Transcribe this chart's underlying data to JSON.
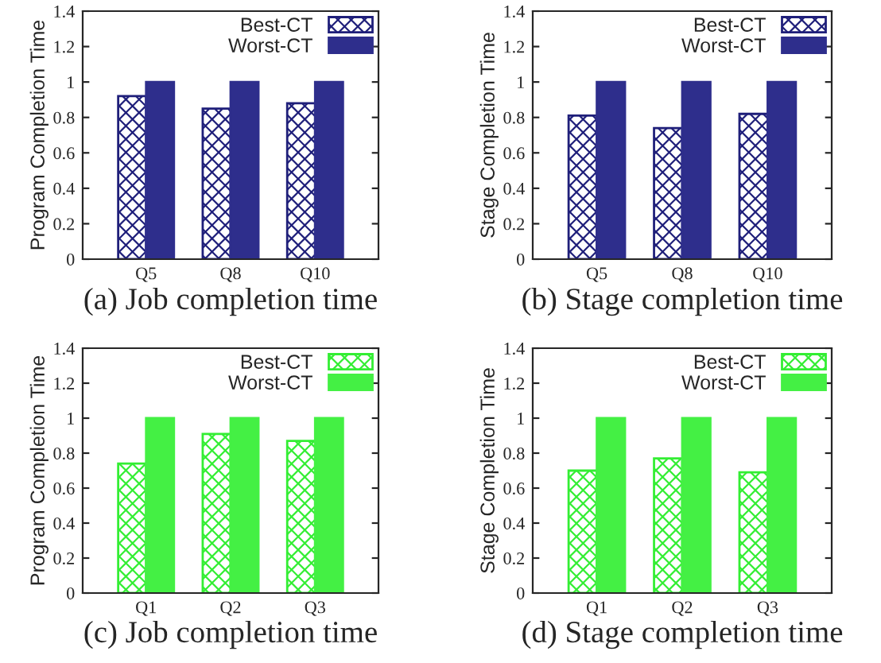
{
  "chart_data": [
    {
      "type": "bar",
      "title": "(a) Job completion time",
      "ylabel": "Program Completion Time",
      "categories": [
        "Q5",
        "Q8",
        "Q10"
      ],
      "series": [
        {
          "name": "Best-CT",
          "color": "#1f1f7a",
          "values": [
            0.92,
            0.85,
            0.88
          ]
        },
        {
          "name": "Worst-CT",
          "color": "#2e2e8c",
          "values": [
            1,
            1,
            1
          ]
        }
      ],
      "ylim": [
        0,
        1.4
      ],
      "yticks": [
        0,
        0.2,
        0.4,
        0.6,
        0.8,
        1,
        1.2,
        1.4
      ],
      "legend": "top right",
      "grid": false
    },
    {
      "type": "bar",
      "title": "(b) Stage completion time",
      "ylabel": "Stage Completion Time",
      "categories": [
        "Q5",
        "Q8",
        "Q10"
      ],
      "series": [
        {
          "name": "Best-CT",
          "color": "#1f1f7a",
          "values": [
            0.81,
            0.74,
            0.82
          ]
        },
        {
          "name": "Worst-CT",
          "color": "#2e2e8c",
          "values": [
            1,
            1,
            1
          ]
        }
      ],
      "ylim": [
        0,
        1.4
      ],
      "yticks": [
        0,
        0.2,
        0.4,
        0.6,
        0.8,
        1,
        1.2,
        1.4
      ],
      "legend": "top right",
      "grid": false
    },
    {
      "type": "bar",
      "title": "(c) Job completion time",
      "ylabel": "Program Completion Time",
      "categories": [
        "Q1",
        "Q2",
        "Q3"
      ],
      "series": [
        {
          "name": "Best-CT",
          "color": "#33ee33",
          "values": [
            0.74,
            0.91,
            0.87
          ]
        },
        {
          "name": "Worst-CT",
          "color": "#44f044",
          "values": [
            1,
            1,
            1
          ]
        }
      ],
      "ylim": [
        0,
        1.4
      ],
      "yticks": [
        0,
        0.2,
        0.4,
        0.6,
        0.8,
        1,
        1.2,
        1.4
      ],
      "legend": "top right",
      "grid": false
    },
    {
      "type": "bar",
      "title": "(d) Stage completion time",
      "ylabel": "Stage Completion Time",
      "categories": [
        "Q1",
        "Q2",
        "Q3"
      ],
      "series": [
        {
          "name": "Best-CT",
          "color": "#33ee33",
          "values": [
            0.7,
            0.77,
            0.69
          ]
        },
        {
          "name": "Worst-CT",
          "color": "#44f044",
          "values": [
            1,
            1,
            1
          ]
        }
      ],
      "ylim": [
        0,
        1.4
      ],
      "yticks": [
        0,
        0.2,
        0.4,
        0.6,
        0.8,
        1,
        1.2,
        1.4
      ],
      "legend": "top right",
      "grid": false
    }
  ]
}
